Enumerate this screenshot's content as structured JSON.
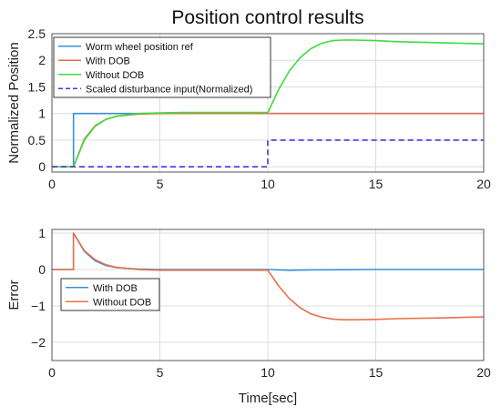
{
  "chart_data": [
    {
      "type": "line",
      "title": "Position control results",
      "xlabel": "",
      "ylabel": "Normalized Position",
      "xlim": [
        0,
        20
      ],
      "ylim": [
        -0.1,
        2.5
      ],
      "xticks": [
        "0",
        "5",
        "10",
        "15",
        "20"
      ],
      "yticks": [
        "0",
        "0.5",
        "1",
        "1.5",
        "2",
        "2.5"
      ],
      "grid": true,
      "legend_position": "top-left",
      "series": [
        {
          "name": "Worm wheel position ref",
          "color": "#3a8fd8",
          "style": "solid",
          "x": [
            0,
            1,
            1,
            20
          ],
          "y": [
            0,
            0,
            1,
            1
          ]
        },
        {
          "name": "With DOB",
          "color": "#e8704a",
          "style": "solid",
          "x": [
            0,
            1,
            1.5,
            2,
            2.5,
            3,
            4,
            5,
            6,
            8,
            10,
            12,
            15,
            20
          ],
          "y": [
            0,
            0,
            0.52,
            0.77,
            0.89,
            0.95,
            0.99,
            1.0,
            1.0,
            1.0,
            1.0,
            1.0,
            1.0,
            1.0
          ]
        },
        {
          "name": "Without DOB",
          "color": "#3ddc3d",
          "style": "solid",
          "x": [
            0,
            1,
            1.5,
            2,
            2.5,
            3,
            4,
            5,
            6,
            8,
            10,
            10.5,
            11,
            11.5,
            12,
            12.5,
            13,
            13.5,
            14,
            15,
            16,
            18,
            20
          ],
          "y": [
            0,
            0,
            0.5,
            0.76,
            0.89,
            0.95,
            1.0,
            1.01,
            1.02,
            1.02,
            1.02,
            1.45,
            1.8,
            2.05,
            2.22,
            2.32,
            2.37,
            2.38,
            2.38,
            2.37,
            2.35,
            2.33,
            2.31
          ]
        },
        {
          "name": "Scaled disturbance input(Normalized)",
          "color": "#3a3ae0",
          "style": "dashed",
          "x": [
            0,
            10,
            10,
            20
          ],
          "y": [
            0,
            0,
            0.5,
            0.5
          ]
        }
      ]
    },
    {
      "type": "line",
      "title": "",
      "xlabel": "Time[sec]",
      "ylabel": "Error",
      "xlim": [
        0,
        20
      ],
      "ylim": [
        -2.5,
        1.1
      ],
      "xticks": [
        "0",
        "5",
        "10",
        "15",
        "20"
      ],
      "yticks": [
        "-2",
        "-1",
        "0",
        "1"
      ],
      "grid": true,
      "legend_position": "bottom-left",
      "series": [
        {
          "name": "With DOB",
          "color": "#3a8fd8",
          "style": "solid",
          "x": [
            0,
            1,
            1,
            1.5,
            2,
            2.5,
            3,
            4,
            5,
            6,
            8,
            10,
            11,
            12,
            15,
            20
          ],
          "y": [
            0,
            0,
            1.0,
            0.5,
            0.24,
            0.11,
            0.05,
            0.01,
            0,
            0,
            0,
            0,
            -0.02,
            -0.01,
            0,
            0
          ]
        },
        {
          "name": "Without DOB",
          "color": "#e8704a",
          "style": "solid",
          "x": [
            0,
            1,
            1,
            1.5,
            2,
            2.5,
            3,
            4,
            5,
            6,
            8,
            10,
            10.5,
            11,
            11.5,
            12,
            12.5,
            13,
            13.5,
            14,
            15,
            16,
            18,
            20
          ],
          "y": [
            0,
            0,
            1.0,
            0.52,
            0.27,
            0.13,
            0.06,
            0.0,
            -0.02,
            -0.02,
            -0.02,
            -0.02,
            -0.45,
            -0.8,
            -1.05,
            -1.22,
            -1.31,
            -1.36,
            -1.38,
            -1.38,
            -1.37,
            -1.35,
            -1.33,
            -1.3
          ]
        }
      ]
    }
  ]
}
